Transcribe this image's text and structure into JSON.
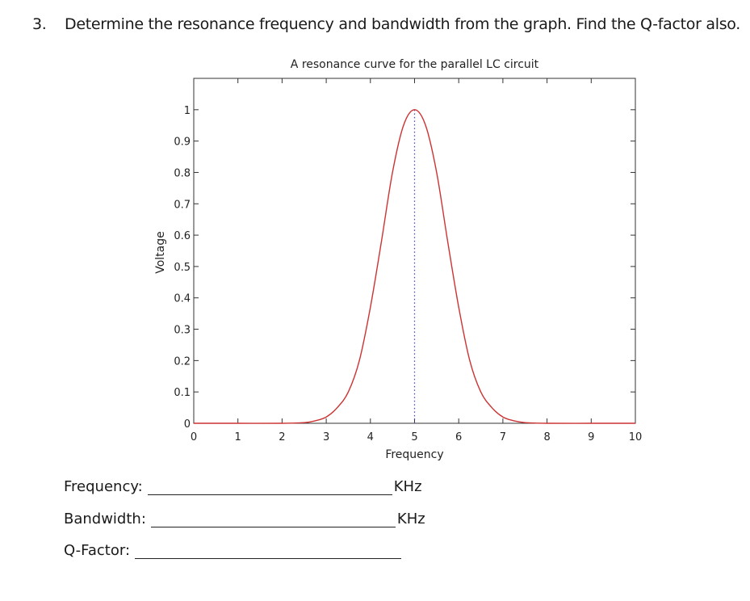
{
  "question": {
    "number": "3.",
    "text": "Determine the resonance frequency and bandwidth from the graph. Find the Q-factor also."
  },
  "answers": [
    {
      "label": "Frequency:",
      "unit": "KHz"
    },
    {
      "label": "Bandwidth:",
      "unit": "KHz"
    },
    {
      "label": "Q-Factor:",
      "unit": ""
    }
  ],
  "chart_data": {
    "type": "line",
    "title": "A resonance curve for the parallel LC circuit",
    "xlabel": "Frequency",
    "ylabel": "Voltage",
    "xlim": [
      0,
      10
    ],
    "ylim": [
      0,
      1.1
    ],
    "xticks": [
      0,
      1,
      2,
      3,
      4,
      5,
      6,
      7,
      8,
      9,
      10
    ],
    "yticks": [
      0,
      0.1,
      0.2,
      0.3,
      0.4,
      0.5,
      0.6,
      0.7,
      0.8,
      0.9,
      1
    ],
    "xtick_labels": [
      "0",
      "1",
      "2",
      "3",
      "4",
      "5",
      "6",
      "7",
      "8",
      "9",
      "10"
    ],
    "ytick_labels": [
      "0",
      "0.1",
      "0.2",
      "0.3",
      "0.4",
      "0.5",
      "0.6",
      "0.7",
      "0.8",
      "0.9",
      "1"
    ],
    "grid": false,
    "line_color": "#cc3333",
    "marker_line": {
      "x": 5,
      "style": "dotted",
      "color": "#4a4aa8"
    },
    "series": [
      {
        "x": [
          0,
          1,
          2,
          2.5,
          2.75,
          3,
          3.25,
          3.5,
          3.75,
          4,
          4.25,
          4.5,
          4.75,
          5,
          5.25,
          5.5,
          5.75,
          6,
          6.25,
          6.5,
          6.75,
          7,
          7.25,
          7.5,
          8,
          9,
          10
        ],
        "y": [
          0,
          0,
          0,
          0.002,
          0.008,
          0.02,
          0.05,
          0.1,
          0.2,
          0.37,
          0.58,
          0.8,
          0.95,
          1.0,
          0.95,
          0.8,
          0.58,
          0.37,
          0.2,
          0.1,
          0.05,
          0.02,
          0.008,
          0.002,
          0,
          0,
          0
        ]
      }
    ]
  }
}
